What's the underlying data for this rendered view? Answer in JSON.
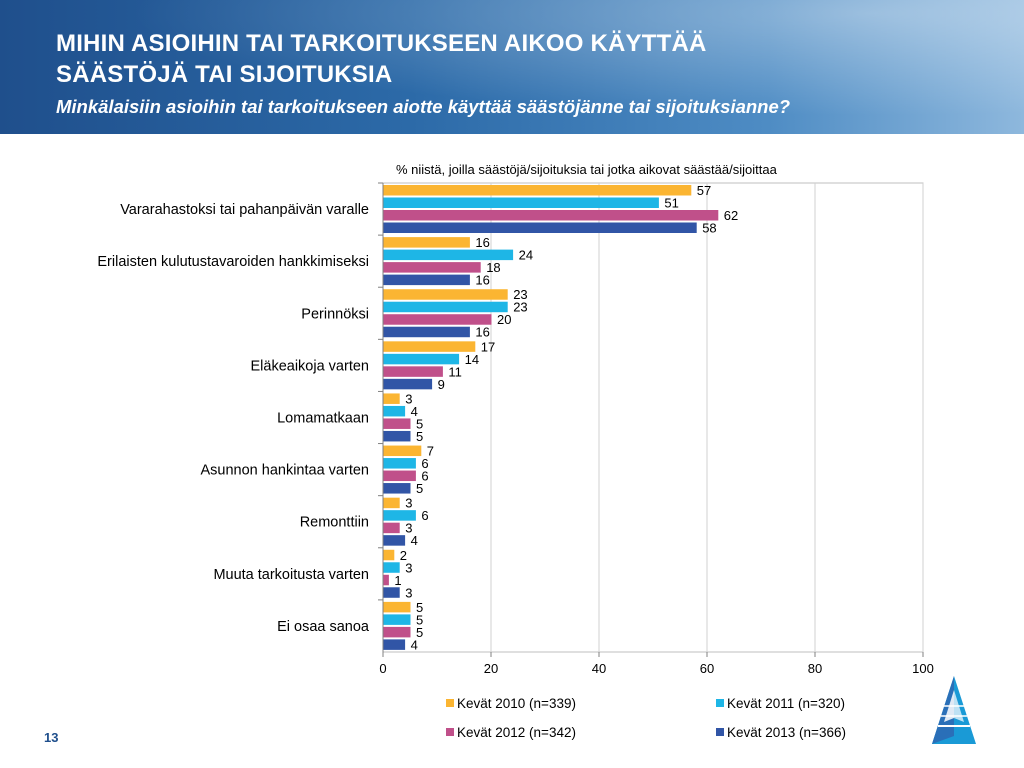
{
  "header": {
    "title_line1": "MIHIN ASIOIHIN TAI TARKOITUKSEEN AIKOO KÄYTTÄÄ",
    "title_line2": "SÄÄSTÖJÄ TAI SIJOITUKSIA",
    "subtitle": "Minkälaisiin asioihin tai tarkoitukseen aiotte käyttää säästöjänne tai sijoituksianne?"
  },
  "footer": {
    "page_number": "13"
  },
  "chart_data": {
    "type": "bar",
    "orientation": "horizontal",
    "note": "% niistä, joilla säästöjä/sijoituksia tai jotka aikovat säästää/sijoittaa",
    "categories": [
      "Vararahastoksi tai pahanpäivän varalle",
      "Erilaisten kulutustavaroiden hankkimiseksi",
      "Perinnöksi",
      "Eläkeaikoja varten",
      "Lomamatkaan",
      "Asunnon hankintaa varten",
      "Remonttiin",
      "Muuta tarkoitusta varten",
      "Ei osaa sanoa"
    ],
    "series": [
      {
        "name": "Kevät 2010 (n=339)",
        "color": "#fbb532",
        "values": [
          57,
          16,
          23,
          17,
          3,
          7,
          3,
          2,
          5
        ]
      },
      {
        "name": "Kevät 2011 (n=320)",
        "color": "#1eb6e6",
        "values": [
          51,
          24,
          23,
          14,
          4,
          6,
          6,
          3,
          5
        ]
      },
      {
        "name": "Kevät 2012 (n=342)",
        "color": "#c0508a",
        "values": [
          62,
          18,
          20,
          11,
          5,
          6,
          3,
          1,
          5
        ]
      },
      {
        "name": "Kevät 2013 (n=366)",
        "color": "#3155a6",
        "values": [
          58,
          16,
          16,
          9,
          5,
          5,
          4,
          3,
          4
        ]
      }
    ],
    "xlim": [
      0,
      100
    ],
    "xticks": [
      0,
      20,
      40,
      60,
      80,
      100
    ],
    "grid": true,
    "legend_position": "bottom"
  }
}
